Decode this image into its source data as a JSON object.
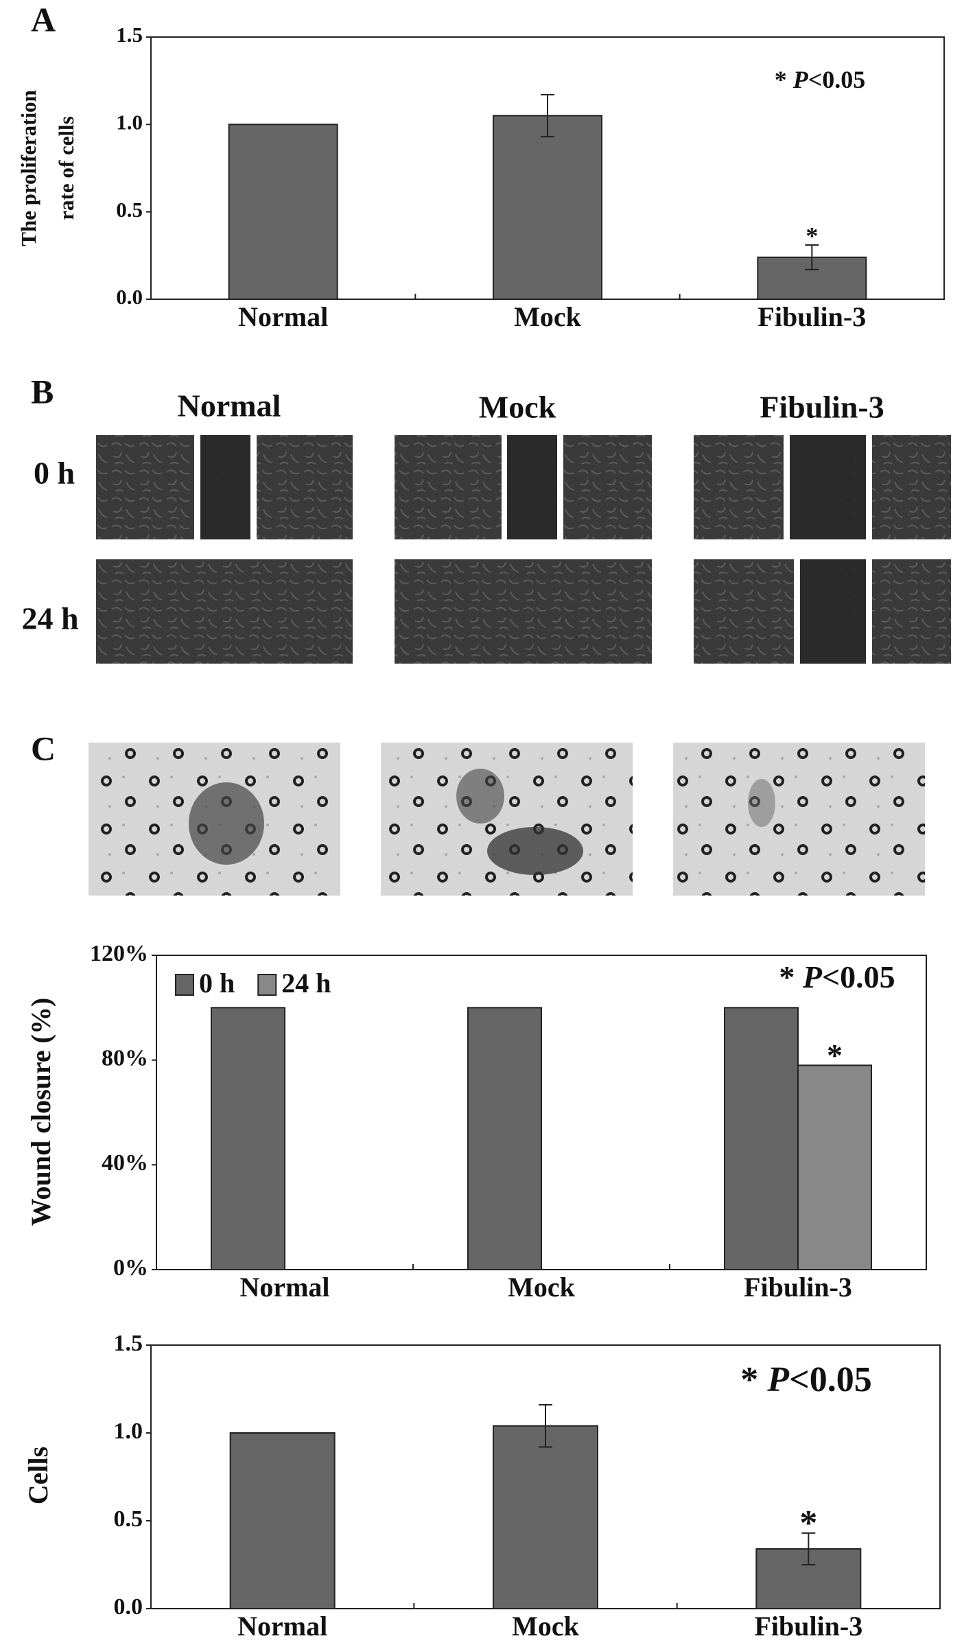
{
  "panels": {
    "a": "A",
    "b": "B",
    "c": "C"
  },
  "wound_images": {
    "columns": [
      "Normal",
      "Mock",
      "Fibulin-3"
    ],
    "rows": [
      "0 h",
      "24 h"
    ]
  },
  "chart_data": [
    {
      "type": "bar",
      "ylabel": [
        "The proliferation",
        "rate  of cells"
      ],
      "annotation": [
        "*",
        "P",
        "<0.05"
      ],
      "categories": [
        "Normal",
        "Mock",
        "Fibulin-3"
      ],
      "series": [
        {
          "color": "#666666",
          "values": [
            1.0,
            1.05,
            0.24
          ],
          "errors": [
            null,
            0.12,
            0.07
          ],
          "star_labels": [
            null,
            null,
            "*"
          ]
        }
      ],
      "ylim": [
        0,
        1.5
      ],
      "yticks": [
        {
          "value": 0,
          "label": "0.0"
        },
        0.5,
        {
          "value": 1,
          "label": "1.0"
        },
        1.5
      ]
    },
    {
      "type": "bar",
      "ylabel": [
        "Wound closure (%)"
      ],
      "annotation": [
        "*",
        "P",
        "<0.05"
      ],
      "categories": [
        "Normal",
        "Mock",
        "Fibulin-3"
      ],
      "series": [
        {
          "name": "0 h",
          "color": "#666666",
          "values": [
            100,
            100,
            100
          ]
        },
        {
          "name": "24 h",
          "color": "#888888",
          "values": [
            0,
            0,
            78
          ],
          "star_labels": [
            null,
            null,
            "*"
          ]
        }
      ],
      "legend": "upper left",
      "ylim": [
        0,
        120
      ],
      "yticks": [
        {
          "value": 0,
          "label": "0%"
        },
        {
          "value": 40,
          "label": "40%"
        },
        {
          "value": 80,
          "label": "80%"
        },
        {
          "value": 120,
          "label": "120%"
        }
      ]
    },
    {
      "type": "bar",
      "ylabel": [
        "Cells"
      ],
      "annotation": [
        "*",
        "P",
        "<0.05"
      ],
      "categories": [
        "Normal",
        "Mock",
        "Fibulin-3"
      ],
      "series": [
        {
          "color": "#666666",
          "values": [
            1.0,
            1.04,
            0.34
          ],
          "errors": [
            null,
            0.12,
            0.09
          ],
          "star_labels": [
            null,
            null,
            "*"
          ]
        }
      ],
      "ylim": [
        0,
        1.5
      ],
      "yticks": [
        {
          "value": 0,
          "label": "0.0"
        },
        0.5,
        {
          "value": 1,
          "label": "1.0"
        },
        1.5
      ]
    }
  ]
}
